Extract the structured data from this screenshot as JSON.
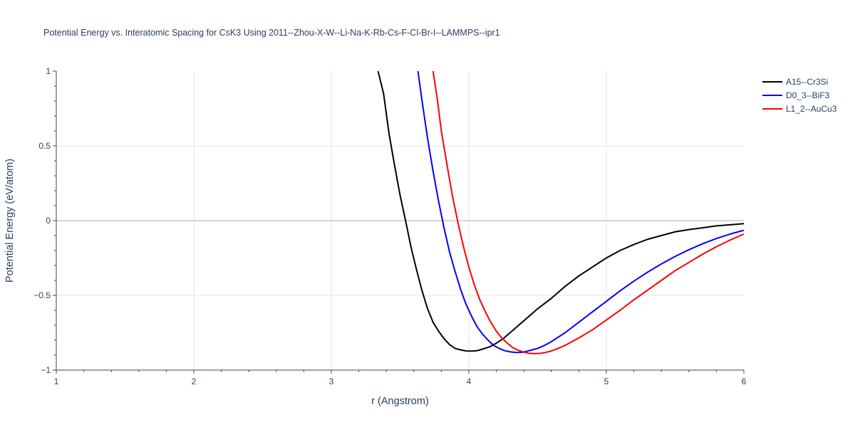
{
  "chart_data": {
    "type": "line",
    "title": "Potential Energy vs. Interatomic Spacing for CsK3 Using 2011--Zhou-X-W--Li-Na-K-Rb-Cs-F-Cl-Br-I--LAMMPS--ipr1",
    "xlabel": "r (Angstrom)",
    "ylabel": "Potential Energy (eV/atom)",
    "xlim": [
      1,
      6
    ],
    "ylim": [
      -1,
      1
    ],
    "x_ticks": [
      "1",
      "2",
      "3",
      "4",
      "5",
      "6"
    ],
    "y_ticks": [
      "−1",
      "−0.5",
      "0",
      "0.5",
      "1"
    ],
    "grid": true,
    "legend_position": "right",
    "series": [
      {
        "name": "A15--Cr3Si",
        "color": "#000000",
        "points": [
          [
            3.34,
            1.0
          ],
          [
            3.38,
            0.85
          ],
          [
            3.42,
            0.58
          ],
          [
            3.46,
            0.37
          ],
          [
            3.5,
            0.17
          ],
          [
            3.54,
            0.0
          ],
          [
            3.58,
            -0.18
          ],
          [
            3.62,
            -0.33
          ],
          [
            3.66,
            -0.47
          ],
          [
            3.7,
            -0.59
          ],
          [
            3.74,
            -0.68
          ],
          [
            3.78,
            -0.74
          ],
          [
            3.82,
            -0.79
          ],
          [
            3.86,
            -0.83
          ],
          [
            3.9,
            -0.855
          ],
          [
            3.94,
            -0.865
          ],
          [
            3.98,
            -0.872
          ],
          [
            4.02,
            -0.873
          ],
          [
            4.06,
            -0.87
          ],
          [
            4.1,
            -0.86
          ],
          [
            4.15,
            -0.845
          ],
          [
            4.2,
            -0.82
          ],
          [
            4.25,
            -0.79
          ],
          [
            4.3,
            -0.75
          ],
          [
            4.4,
            -0.67
          ],
          [
            4.5,
            -0.59
          ],
          [
            4.6,
            -0.52
          ],
          [
            4.7,
            -0.44
          ],
          [
            4.8,
            -0.37
          ],
          [
            4.9,
            -0.31
          ],
          [
            5.0,
            -0.25
          ],
          [
            5.1,
            -0.2
          ],
          [
            5.2,
            -0.16
          ],
          [
            5.3,
            -0.125
          ],
          [
            5.4,
            -0.1
          ],
          [
            5.5,
            -0.075
          ],
          [
            5.6,
            -0.06
          ],
          [
            5.7,
            -0.048
          ],
          [
            5.8,
            -0.035
          ],
          [
            5.9,
            -0.028
          ],
          [
            6.0,
            -0.02
          ]
        ]
      },
      {
        "name": "D0_3--BiF3",
        "color": "#0000ff",
        "points": [
          [
            3.63,
            1.0
          ],
          [
            3.66,
            0.8
          ],
          [
            3.7,
            0.55
          ],
          [
            3.74,
            0.33
          ],
          [
            3.78,
            0.13
          ],
          [
            3.82,
            -0.05
          ],
          [
            3.86,
            -0.21
          ],
          [
            3.9,
            -0.34
          ],
          [
            3.94,
            -0.46
          ],
          [
            3.98,
            -0.56
          ],
          [
            4.02,
            -0.64
          ],
          [
            4.06,
            -0.71
          ],
          [
            4.1,
            -0.76
          ],
          [
            4.14,
            -0.8
          ],
          [
            4.18,
            -0.835
          ],
          [
            4.22,
            -0.855
          ],
          [
            4.26,
            -0.87
          ],
          [
            4.3,
            -0.878
          ],
          [
            4.34,
            -0.882
          ],
          [
            4.38,
            -0.882
          ],
          [
            4.42,
            -0.875
          ],
          [
            4.46,
            -0.865
          ],
          [
            4.5,
            -0.855
          ],
          [
            4.55,
            -0.835
          ],
          [
            4.6,
            -0.81
          ],
          [
            4.7,
            -0.75
          ],
          [
            4.8,
            -0.68
          ],
          [
            4.9,
            -0.61
          ],
          [
            5.0,
            -0.54
          ],
          [
            5.1,
            -0.47
          ],
          [
            5.2,
            -0.405
          ],
          [
            5.3,
            -0.345
          ],
          [
            5.4,
            -0.29
          ],
          [
            5.5,
            -0.24
          ],
          [
            5.6,
            -0.195
          ],
          [
            5.7,
            -0.155
          ],
          [
            5.8,
            -0.12
          ],
          [
            5.9,
            -0.09
          ],
          [
            6.0,
            -0.065
          ]
        ]
      },
      {
        "name": "L1_2--AuCu3",
        "color": "#ff0000",
        "points": [
          [
            3.74,
            1.0
          ],
          [
            3.77,
            0.82
          ],
          [
            3.8,
            0.6
          ],
          [
            3.84,
            0.38
          ],
          [
            3.88,
            0.17
          ],
          [
            3.92,
            -0.01
          ],
          [
            3.96,
            -0.17
          ],
          [
            4.0,
            -0.31
          ],
          [
            4.04,
            -0.43
          ],
          [
            4.08,
            -0.53
          ],
          [
            4.12,
            -0.61
          ],
          [
            4.16,
            -0.68
          ],
          [
            4.2,
            -0.74
          ],
          [
            4.24,
            -0.785
          ],
          [
            4.28,
            -0.82
          ],
          [
            4.32,
            -0.85
          ],
          [
            4.36,
            -0.868
          ],
          [
            4.4,
            -0.88
          ],
          [
            4.44,
            -0.888
          ],
          [
            4.48,
            -0.89
          ],
          [
            4.52,
            -0.888
          ],
          [
            4.56,
            -0.882
          ],
          [
            4.6,
            -0.872
          ],
          [
            4.65,
            -0.855
          ],
          [
            4.7,
            -0.835
          ],
          [
            4.8,
            -0.785
          ],
          [
            4.9,
            -0.73
          ],
          [
            5.0,
            -0.665
          ],
          [
            5.1,
            -0.6
          ],
          [
            5.2,
            -0.53
          ],
          [
            5.3,
            -0.465
          ],
          [
            5.4,
            -0.4
          ],
          [
            5.5,
            -0.335
          ],
          [
            5.6,
            -0.28
          ],
          [
            5.7,
            -0.225
          ],
          [
            5.8,
            -0.175
          ],
          [
            5.9,
            -0.13
          ],
          [
            6.0,
            -0.09
          ]
        ]
      }
    ]
  }
}
